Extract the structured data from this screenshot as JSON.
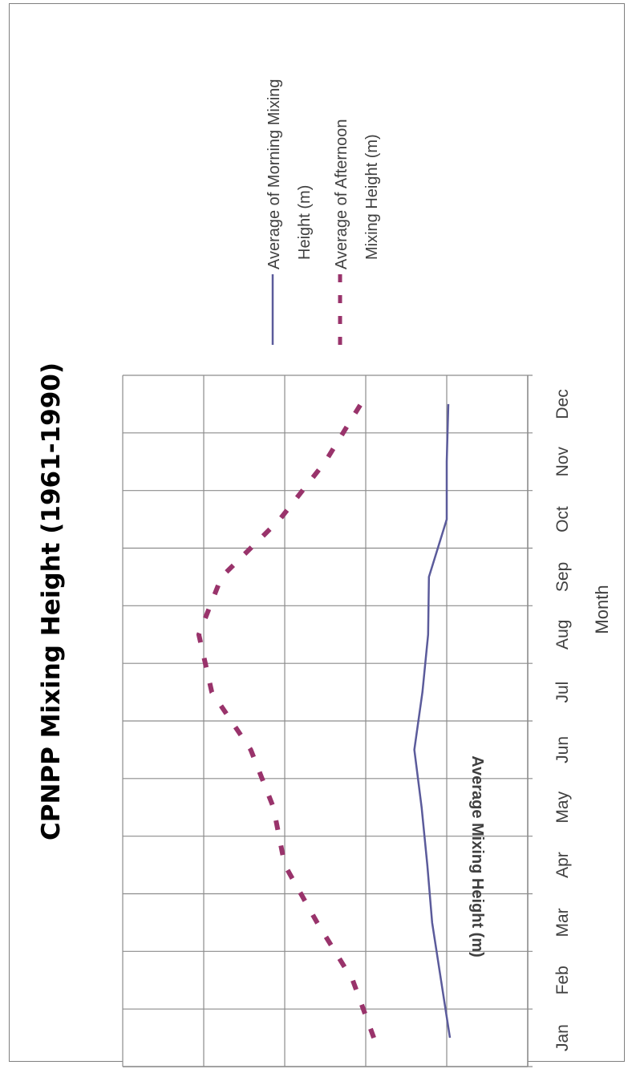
{
  "chart_data": {
    "type": "line",
    "title": "CPNPP Mixing Height (1961-1990)",
    "xlabel": "Month",
    "ylabel": "Average Mixing Height (m)",
    "categories": [
      "Jan",
      "Feb",
      "Mar",
      "Apr",
      "May",
      "Jun",
      "Jul",
      "Aug",
      "Sep",
      "Oct",
      "Nov",
      "Dec"
    ],
    "ylim": [
      0,
      2500
    ],
    "yticks": [
      "0",
      "500",
      "1000",
      "1500",
      "2000",
      "2500"
    ],
    "grid": true,
    "legend_position": "right",
    "series": [
      {
        "name": "Average of Morning Mixing Height (m)",
        "style": "solid",
        "color": "#5b5b9b",
        "values": [
          480,
          535,
          590,
          620,
          655,
          700,
          650,
          615,
          610,
          500,
          500,
          490
        ]
      },
      {
        "name": "Average of Afternoon Mixing Height (m)",
        "style": "dashed",
        "color": "#99336b",
        "values": [
          950,
          1080,
          1300,
          1500,
          1570,
          1710,
          1950,
          2030,
          1890,
          1530,
          1250,
          1030
        ]
      }
    ]
  }
}
